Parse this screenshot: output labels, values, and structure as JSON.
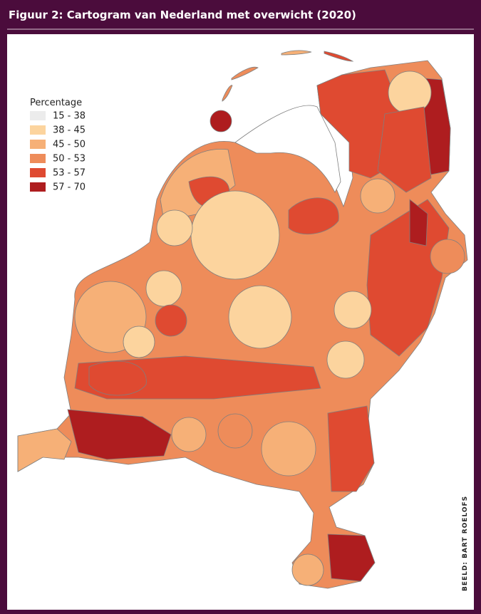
{
  "header": {
    "title": "Figuur 2: Cartogram van Nederland met overwicht (2020)"
  },
  "legend": {
    "title": "Percentage",
    "items": [
      {
        "label": "15 - 38",
        "color": "#ececec"
      },
      {
        "label": "38 - 45",
        "color": "#fcd49e"
      },
      {
        "label": "45 - 50",
        "color": "#f6b077"
      },
      {
        "label": "50 - 53",
        "color": "#ee8c5a"
      },
      {
        "label": "53 - 57",
        "color": "#df4a31"
      },
      {
        "label": "57 - 70",
        "color": "#ae1d1f"
      }
    ]
  },
  "credit": "BEELD: BART ROELOFS"
}
